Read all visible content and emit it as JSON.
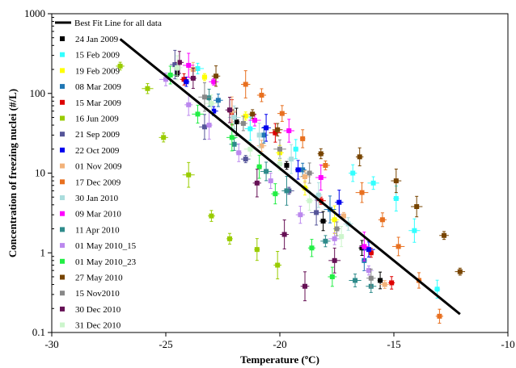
{
  "chart_data": {
    "type": "scatter",
    "xlabel": "Temperature (ºC)",
    "ylabel": "Concentration of freezing nuclei (#/L)",
    "xlim": [
      -30,
      -10
    ],
    "ylim": [
      0.1,
      1000
    ],
    "y_scale": "log",
    "x_ticks": [
      -30,
      -25,
      -20,
      -15,
      -10
    ],
    "x_tick_labels": [
      "-30",
      "-25",
      "-20",
      "-15",
      "-10"
    ],
    "y_ticks": [
      0.1,
      1,
      10,
      100,
      1000
    ],
    "y_tick_labels": [
      "0.1",
      "1",
      "10",
      "100",
      "1000"
    ],
    "grid": false,
    "legend_placement": "top-left",
    "fit_line": {
      "name": "Best Fit Line for all data",
      "color": "#000000",
      "x": [
        -27,
        -12.1
      ],
      "y": [
        480,
        0.17
      ]
    },
    "series": [
      {
        "name": "24 Jan 2009",
        "color": "#000000",
        "x": [
          -24.5,
          -21.9,
          -19.7,
          -18.1,
          -16.4,
          -15.6
        ],
        "y": [
          180,
          44,
          12.5,
          2.5,
          1.15,
          0.45
        ]
      },
      {
        "name": "15 Feb 2009",
        "color": "#33ffff",
        "x": [
          -23.6,
          -21.3,
          -19.3,
          -16.8,
          -15.9,
          -14.9,
          -14.1,
          -13.1
        ],
        "y": [
          205,
          36,
          20,
          10,
          7.5,
          4.8,
          1.9,
          0.35
        ]
      },
      {
        "name": "19 Feb 2009",
        "color": "#ffff00",
        "x": [
          -23.3,
          -21.5,
          -20.0,
          -18.9,
          -17.6
        ],
        "y": [
          160,
          52,
          18,
          6.5,
          2.6
        ]
      },
      {
        "name": "08 Mar 2009",
        "color": "#1f77b4",
        "x": [
          -22.7,
          -20.7,
          -19.0,
          -17.8,
          -16.3
        ],
        "y": [
          82,
          30,
          11,
          3.5,
          0.8
        ]
      },
      {
        "name": "15 Mar 2009",
        "color": "#dd0000",
        "x": [
          -24.2,
          -22.1,
          -20.2,
          -18.2,
          -16.0,
          -15.1
        ],
        "y": [
          150,
          58,
          32,
          4.5,
          1.0,
          0.42
        ]
      },
      {
        "name": "16 Jun 2009",
        "color": "#99cc00",
        "x": [
          -27.0,
          -25.8,
          -25.1,
          -24.0,
          -23.0,
          -22.2,
          -21.0,
          -20.1
        ],
        "y": [
          220,
          115,
          28,
          9.5,
          2.9,
          1.5,
          1.1,
          0.7
        ]
      },
      {
        "name": "21 Sep 2009",
        "color": "#555599",
        "x": [
          -24.6,
          -23.3,
          -21.5,
          -19.6,
          -18.4
        ],
        "y": [
          230,
          38,
          15,
          6.0,
          3.2
        ]
      },
      {
        "name": "22 Oct 2009",
        "color": "#0000ee",
        "x": [
          -24.1,
          -22.9,
          -20.6,
          -19.2,
          -17.4,
          -16.1
        ],
        "y": [
          140,
          60,
          37,
          11,
          4.3,
          1.1
        ]
      },
      {
        "name": "01 Nov 2009",
        "color": "#f2b27a",
        "x": [
          -23.8,
          -22.1,
          -20.8,
          -18.9,
          -17.2,
          -15.4
        ],
        "y": [
          200,
          60,
          22,
          9.0,
          2.9,
          0.4
        ]
      },
      {
        "name": "17 Dec 2009",
        "color": "#e87020",
        "x": [
          -21.5,
          -20.8,
          -19.9,
          -19.0,
          -18.0,
          -16.4,
          -15.5,
          -14.8,
          -13.9,
          -13.0
        ],
        "y": [
          130,
          95,
          56,
          27,
          12.5,
          5.7,
          2.6,
          1.2,
          0.45,
          0.16
        ]
      },
      {
        "name": "30 Jan 2010",
        "color": "#aadddd",
        "x": [
          -22.0,
          -20.9,
          -19.5,
          -18.3,
          -17.0
        ],
        "y": [
          50,
          30,
          15,
          5.3,
          2.3
        ]
      },
      {
        "name": "09 Mar 2010",
        "color": "#ff00ff",
        "x": [
          -24.0,
          -22.9,
          -21.1,
          -19.6,
          -18.2,
          -16.3
        ],
        "y": [
          225,
          140,
          46,
          34,
          8.8,
          1.2
        ]
      },
      {
        "name": "11 Apr 2010",
        "color": "#2e8b8b",
        "x": [
          -23.1,
          -22.0,
          -20.6,
          -19.7,
          -18.0,
          -16.7,
          -16.0
        ],
        "y": [
          88,
          23,
          10.5,
          6.0,
          1.4,
          0.45,
          0.38
        ]
      },
      {
        "name": "01 May 2010_15",
        "color": "#bb88ee",
        "x": [
          -25.0,
          -24.0,
          -23.1,
          -21.8,
          -20.4,
          -19.1,
          -17.6,
          -16.1
        ],
        "y": [
          150,
          72,
          40,
          18,
          8.0,
          3.0,
          1.5,
          0.6
        ]
      },
      {
        "name": "01 May 2010_23",
        "color": "#22ee44",
        "x": [
          -24.8,
          -23.6,
          -22.1,
          -20.9,
          -20.2,
          -18.6,
          -17.7
        ],
        "y": [
          170,
          55,
          28,
          12,
          5.5,
          1.15,
          0.5
        ]
      },
      {
        "name": "27 May 2010",
        "color": "#774400",
        "x": [
          -22.8,
          -21.2,
          -20.1,
          -18.2,
          -16.5,
          -14.9,
          -14.0,
          -12.8,
          -12.1
        ],
        "y": [
          165,
          55,
          35,
          17.5,
          16,
          8.0,
          3.8,
          1.65,
          0.58
        ]
      },
      {
        "name": "15 Nov2010",
        "color": "#888888",
        "x": [
          -23.3,
          -21.6,
          -20.0,
          -18.7,
          -17.5,
          -16.0
        ],
        "y": [
          90,
          42,
          20,
          10,
          2.0,
          0.48
        ]
      },
      {
        "name": "30 Dec 2010",
        "color": "#661155",
        "x": [
          -24.4,
          -23.8,
          -22.2,
          -21.0,
          -19.8,
          -18.9,
          -17.6
        ],
        "y": [
          245,
          155,
          62,
          7.5,
          1.7,
          0.38,
          0.8
        ]
      },
      {
        "name": "31 Dec 2010",
        "color": "#ccf5cc",
        "x": [
          -24.5,
          -23.0,
          -21.3,
          -20.0,
          -18.7,
          -17.3
        ],
        "y": [
          210,
          75,
          20,
          13,
          4.5,
          1.6
        ]
      }
    ]
  }
}
